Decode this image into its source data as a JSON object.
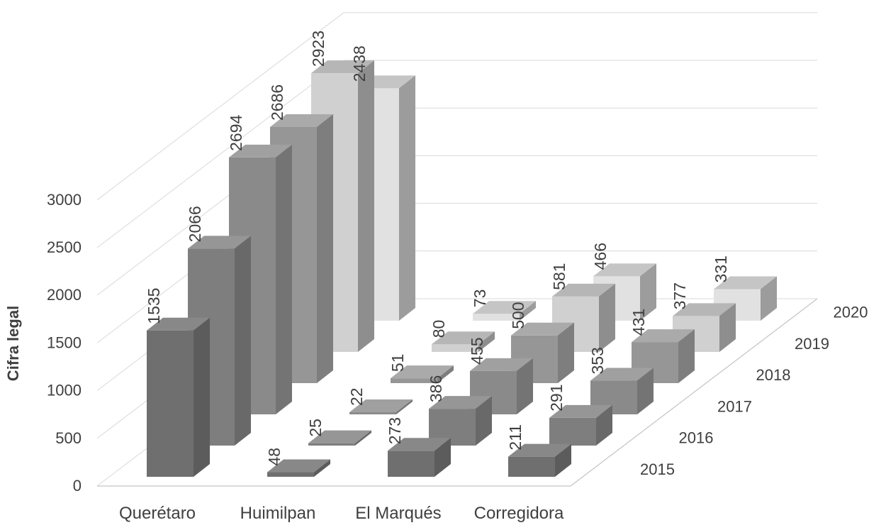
{
  "chart_data": {
    "type": "bar",
    "projection": "3d-column",
    "title": "",
    "ylabel": "Cifra legal",
    "xlabel": "",
    "categories": [
      "Querétaro",
      "Huimilpan",
      "El Marqués",
      "Corregidora"
    ],
    "series": [
      {
        "name": "2015",
        "values": [
          1535,
          48,
          273,
          211
        ],
        "colors": {
          "front": "#6f6f6f",
          "side": "#5c5c5c",
          "top": "#888888"
        }
      },
      {
        "name": "2016",
        "values": [
          2066,
          25,
          386,
          291
        ],
        "colors": {
          "front": "#7e7e7e",
          "side": "#696969",
          "top": "#969696"
        }
      },
      {
        "name": "2017",
        "values": [
          2694,
          22,
          455,
          353
        ],
        "colors": {
          "front": "#8a8a8a",
          "side": "#747474",
          "top": "#a0a0a0"
        }
      },
      {
        "name": "2018",
        "values": [
          2686,
          51,
          500,
          431
        ],
        "colors": {
          "front": "#969696",
          "side": "#7e7e7e",
          "top": "#aaaaaa"
        }
      },
      {
        "name": "2019",
        "values": [
          2923,
          80,
          581,
          377
        ],
        "colors": {
          "front": "#d0d0d0",
          "side": "#8e8e8e",
          "top": "#b6b6b6"
        }
      },
      {
        "name": "2020",
        "values": [
          2438,
          73,
          466,
          331
        ],
        "colors": {
          "front": "#e1e1e1",
          "side": "#9c9c9c",
          "top": "#c5c5c5"
        }
      }
    ],
    "y_ticks": [
      0,
      500,
      1000,
      1500,
      2000,
      2500,
      3000
    ],
    "ylim": [
      0,
      3000
    ],
    "grid": true,
    "legend_position": "none",
    "data_labels": true,
    "data_label_rotation_deg": -90,
    "depth_axis_labels": [
      "2015",
      "2016",
      "2017",
      "2018",
      "2019",
      "2020"
    ],
    "text_color": "#3f3f3f",
    "gridline_color": "#d9d9d9",
    "axis_line_color": "#c3c3c3",
    "background_color": "#ffffff"
  }
}
